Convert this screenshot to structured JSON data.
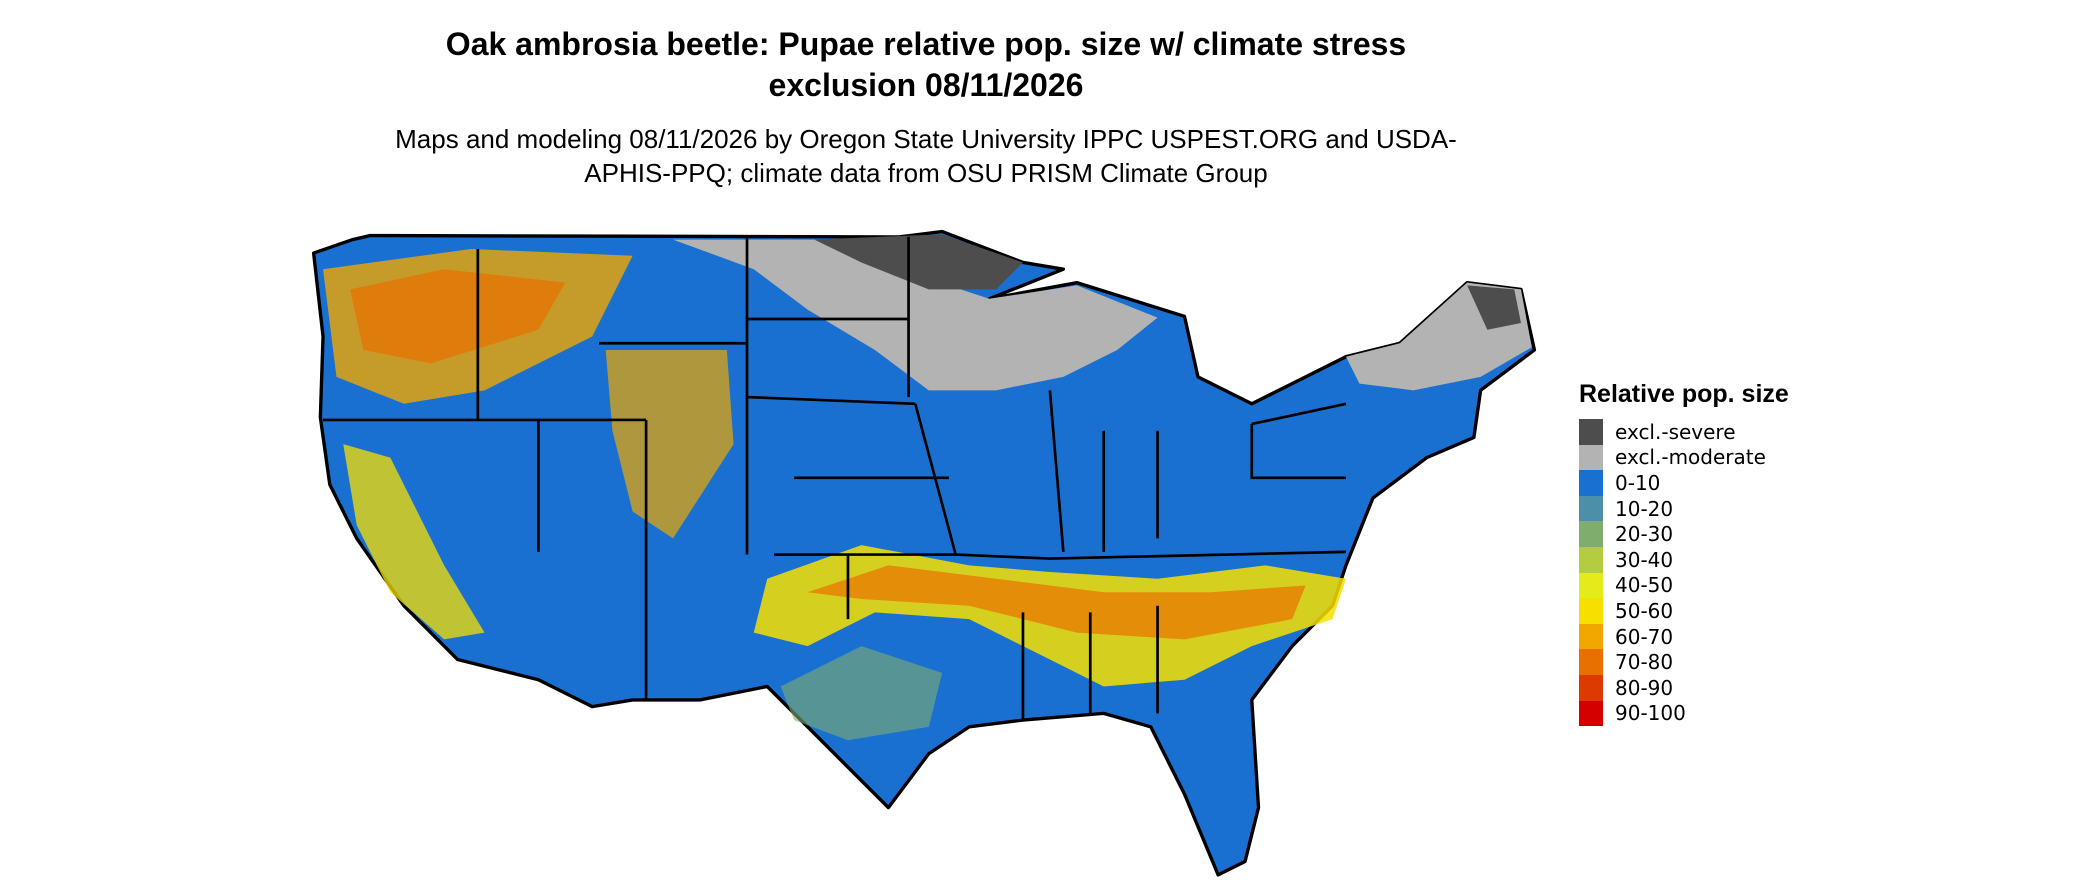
{
  "title": "Oak ambrosia beetle: Pupae relative pop. size w/ climate stress exclusion 08/11/2026",
  "subtitle": "Maps and modeling 08/11/2026 by Oregon State University IPPC USPEST.ORG and USDA-APHIS-PPQ; climate data from OSU PRISM Climate Group",
  "legend": {
    "title": "Relative pop. size",
    "items": [
      {
        "label": "excl.-severe",
        "color": "#4d4d4d"
      },
      {
        "label": "excl.-moderate",
        "color": "#b3b3b3"
      },
      {
        "label": "0-10",
        "color": "#1a70d0"
      },
      {
        "label": "10-20",
        "color": "#4c8fa8"
      },
      {
        "label": "20-30",
        "color": "#7fac6f"
      },
      {
        "label": "30-40",
        "color": "#b3cc40"
      },
      {
        "label": "40-50",
        "color": "#e3ec1a"
      },
      {
        "label": "50-60",
        "color": "#f7df00"
      },
      {
        "label": "60-70",
        "color": "#f0a800"
      },
      {
        "label": "70-80",
        "color": "#e87000"
      },
      {
        "label": "80-90",
        "color": "#dc3a00"
      },
      {
        "label": "90-100",
        "color": "#d40000"
      }
    ]
  }
}
